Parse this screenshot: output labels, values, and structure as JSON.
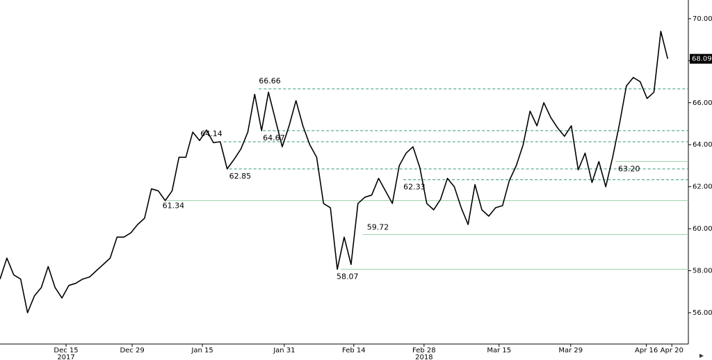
{
  "chart_data": {
    "type": "line",
    "x": [
      0,
      1,
      2,
      3,
      4,
      5,
      6,
      7,
      8,
      9,
      10,
      11,
      12,
      13,
      14,
      15,
      16,
      17,
      18,
      19,
      20,
      21,
      22,
      23,
      24,
      25,
      26,
      27,
      28,
      29,
      30,
      31,
      32,
      33,
      34,
      35,
      36,
      37,
      38,
      39,
      40,
      41,
      42,
      43,
      44,
      45,
      46,
      47,
      48,
      49,
      50,
      51,
      52,
      53,
      54,
      55,
      56,
      57,
      58,
      59,
      60,
      61,
      62,
      63,
      64,
      65,
      66,
      67,
      68,
      69,
      70,
      71,
      72,
      73,
      74,
      75,
      76,
      77,
      78,
      79,
      80,
      81,
      82,
      83,
      84,
      85,
      86,
      87,
      88,
      89,
      90,
      91,
      92,
      93,
      94,
      95,
      96,
      97
    ],
    "series": [
      {
        "color": "#000000",
        "values": [
          57.6,
          58.6,
          57.8,
          57.6,
          56.0,
          56.8,
          57.2,
          58.2,
          57.2,
          56.7,
          57.3,
          57.4,
          57.6,
          57.7,
          58.0,
          58.3,
          58.6,
          59.6,
          59.6,
          59.8,
          60.2,
          60.5,
          61.9,
          61.8,
          61.34,
          61.8,
          63.4,
          63.4,
          64.6,
          64.2,
          64.7,
          64.1,
          64.14,
          62.85,
          63.3,
          63.8,
          64.6,
          66.4,
          64.67,
          66.5,
          65.2,
          63.9,
          64.9,
          66.1,
          64.9,
          64.0,
          63.4,
          61.2,
          61.0,
          58.07,
          59.6,
          58.3,
          61.2,
          61.5,
          61.6,
          62.4,
          61.8,
          61.2,
          63.0,
          63.6,
          63.9,
          62.9,
          61.2,
          60.9,
          61.4,
          62.4,
          62.0,
          61.0,
          60.2,
          62.1,
          60.9,
          60.6,
          61.0,
          61.1,
          62.3,
          63.0,
          64.0,
          65.6,
          64.9,
          66.0,
          65.3,
          64.8,
          64.4,
          64.9,
          62.8,
          63.6,
          62.2,
          63.2,
          62.0,
          63.4,
          65.0,
          66.8,
          67.2,
          67.0,
          66.2,
          66.5,
          69.4,
          68.09
        ]
      }
    ],
    "xlim": [
      0,
      100
    ],
    "xticks": [
      {
        "value": 9.6,
        "label": "Dec 15"
      },
      {
        "value": 19.2,
        "label": "Dec 29"
      },
      {
        "value": 29.4,
        "label": "Jan 15"
      },
      {
        "value": 41.3,
        "label": "Jan 31"
      },
      {
        "value": 51.4,
        "label": "Feb 14"
      },
      {
        "value": 61.6,
        "label": "Feb 28"
      },
      {
        "value": 72.5,
        "label": "Mar 15"
      },
      {
        "value": 82.9,
        "label": "Mar 29"
      },
      {
        "value": 93.9,
        "label": "Apr 16"
      },
      {
        "value": 97.6,
        "label": "Apr 20"
      }
    ],
    "year_labels": [
      {
        "value": 9.6,
        "label": "2017"
      },
      {
        "value": 61.6,
        "label": "2018"
      }
    ],
    "ylim": [
      54.51,
      70.89
    ],
    "yticks": [
      {
        "value": 56,
        "label": "56.00"
      },
      {
        "value": 58,
        "label": "58.00"
      },
      {
        "value": 60,
        "label": "60.00"
      },
      {
        "value": 62,
        "label": "62.00"
      },
      {
        "value": 64,
        "label": "64.00"
      },
      {
        "value": 66,
        "label": "66.00"
      },
      {
        "value": 68,
        "label": "68.00"
      },
      {
        "value": 70,
        "label": "70.00"
      }
    ],
    "last_price": 68.09,
    "levels": [
      {
        "value": 66.66,
        "start": 37.6,
        "style": "dashed"
      },
      {
        "value": 64.67,
        "start": 38.2,
        "style": "dashed"
      },
      {
        "value": 64.14,
        "start": 32.5,
        "style": "dashed"
      },
      {
        "value": 62.85,
        "start": 33.3,
        "style": "dashed"
      },
      {
        "value": 62.33,
        "start": 58.6,
        "style": "dashed"
      },
      {
        "value": {
          "value": 63.2,
          "label": "63.20"
        },
        "start": 89.4,
        "style": "solid"
      },
      {
        "value": 61.34,
        "start": 24.2,
        "style": "solid"
      },
      {
        "value": 59.72,
        "start": 52.7,
        "style": "solid"
      },
      {
        "value": 58.07,
        "start": 49.5,
        "style": "solid"
      }
    ]
  }
}
